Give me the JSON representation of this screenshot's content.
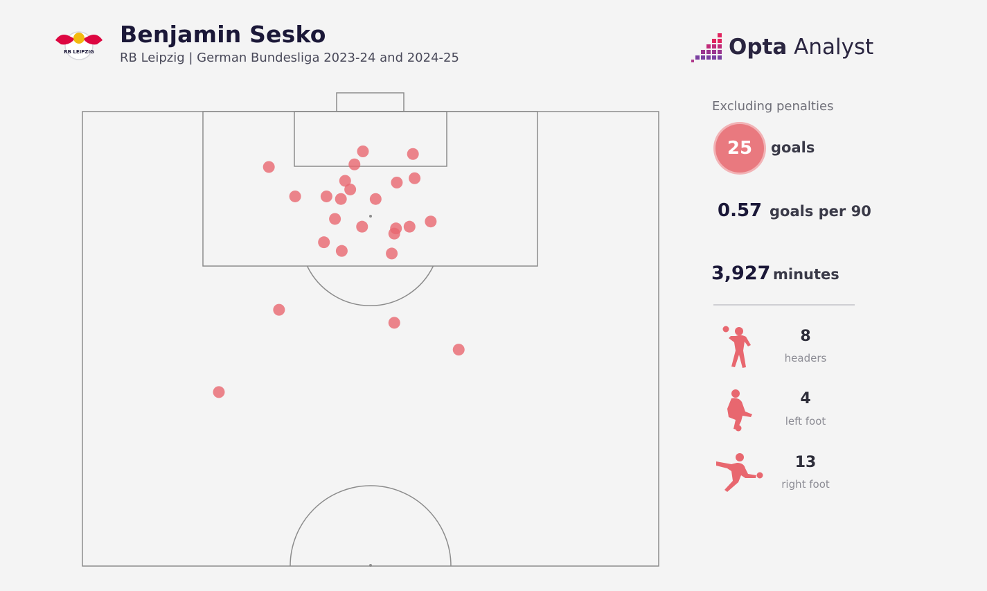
{
  "header": {
    "player": "Benjamin Sesko",
    "subtitle": "RB Leipzig | German Bundesliga 2023-24 and 2024-25"
  },
  "brand": {
    "name_bold": "Opta",
    "name_rest": " Analyst"
  },
  "stats": {
    "note": "Excluding penalties",
    "goals_value": "25",
    "goals_label": "goals",
    "per90_value": "0.57",
    "per90_label": "goals per 90",
    "minutes_value": "3,927",
    "minutes_label": "minutes"
  },
  "breakdown": [
    {
      "icon": "header-player-icon",
      "value": "8",
      "label": "headers"
    },
    {
      "icon": "left-foot-player-icon",
      "value": "4",
      "label": "left foot"
    },
    {
      "icon": "right-foot-player-icon",
      "value": "13",
      "label": "right foot"
    }
  ],
  "colors": {
    "shot": "#e8676f",
    "line": "#8c8c8c",
    "accent": "#e9797f",
    "brand_pink": "#e0245e",
    "brand_purple": "#7a3fa0"
  },
  "chart_data": {
    "type": "scatter",
    "pitch": "half-pitch, attacking goal at top",
    "x_range": [
      0,
      68
    ],
    "y_range": [
      0,
      52.5
    ],
    "x_unit": "m across pitch from left touchline",
    "y_unit": "m from goal line",
    "points": [
      {
        "x": 22.0,
        "y": 6.4
      },
      {
        "x": 33.1,
        "y": 4.6
      },
      {
        "x": 39.0,
        "y": 4.9
      },
      {
        "x": 32.1,
        "y": 6.1
      },
      {
        "x": 37.1,
        "y": 8.2
      },
      {
        "x": 39.2,
        "y": 7.7
      },
      {
        "x": 31.0,
        "y": 8.0
      },
      {
        "x": 31.6,
        "y": 9.0
      },
      {
        "x": 25.1,
        "y": 9.8
      },
      {
        "x": 28.8,
        "y": 9.8
      },
      {
        "x": 30.5,
        "y": 10.1
      },
      {
        "x": 34.6,
        "y": 10.1
      },
      {
        "x": 29.8,
        "y": 12.4
      },
      {
        "x": 33.0,
        "y": 13.3
      },
      {
        "x": 37.0,
        "y": 13.5
      },
      {
        "x": 38.6,
        "y": 13.3
      },
      {
        "x": 41.1,
        "y": 12.7
      },
      {
        "x": 36.8,
        "y": 14.1
      },
      {
        "x": 28.5,
        "y": 15.1
      },
      {
        "x": 30.6,
        "y": 16.1
      },
      {
        "x": 36.5,
        "y": 16.4
      },
      {
        "x": 23.2,
        "y": 22.9
      },
      {
        "x": 36.8,
        "y": 24.4
      },
      {
        "x": 44.4,
        "y": 27.5
      },
      {
        "x": 16.1,
        "y": 32.4
      }
    ]
  }
}
